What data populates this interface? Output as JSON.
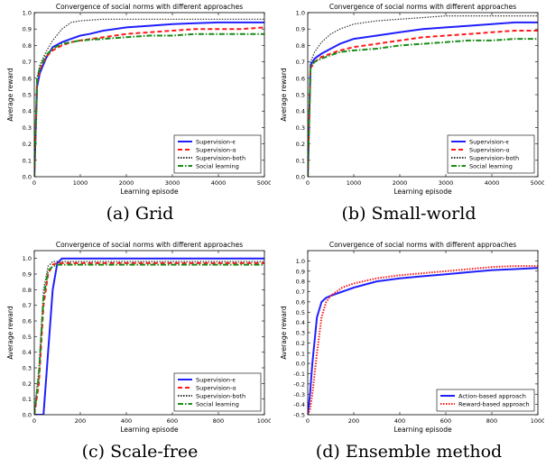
{
  "charts": [
    {
      "caption": "(a) Grid",
      "chart_data": {
        "type": "line",
        "title": "Convergence of social norms with different approaches",
        "xlabel": "Learning episode",
        "ylabel": "Average reward",
        "xlim": [
          0,
          5000
        ],
        "ylim": [
          0.0,
          1.0
        ],
        "xticks": [
          0,
          1000,
          2000,
          3000,
          4000,
          5000
        ],
        "yticks": [
          0.0,
          0.1,
          0.2,
          0.3,
          0.4,
          0.5,
          0.6,
          0.7,
          0.8,
          0.9,
          1.0
        ],
        "ytick_labels": [
          "0.0",
          "0.1",
          "0.2",
          "0.3",
          "0.4",
          "0.5",
          "0.6",
          "0.7",
          "0.8",
          "0.9",
          "1.0"
        ],
        "legend": "bottom-right",
        "series": [
          {
            "name": "Supervision-ϵ",
            "color": "#1f1fff",
            "style": "solid",
            "x": [
              0,
              60,
              120,
              250,
              400,
              600,
              800,
              1000,
              1200,
              1500,
              2000,
              2500,
              3000,
              3500,
              4000,
              4500,
              5000
            ],
            "y": [
              0.0,
              0.55,
              0.63,
              0.72,
              0.79,
              0.82,
              0.84,
              0.86,
              0.87,
              0.89,
              0.91,
              0.92,
              0.93,
              0.935,
              0.94,
              0.94,
              0.94
            ]
          },
          {
            "name": "Supervision-α",
            "color": "#ff1a1a",
            "style": "dashed",
            "x": [
              0,
              60,
              120,
              250,
              400,
              600,
              800,
              1000,
              1500,
              2000,
              2500,
              3000,
              3500,
              4000,
              4500,
              5000
            ],
            "y": [
              0.0,
              0.58,
              0.65,
              0.73,
              0.77,
              0.8,
              0.82,
              0.83,
              0.85,
              0.87,
              0.88,
              0.89,
              0.9,
              0.9,
              0.9,
              0.91
            ]
          },
          {
            "name": "Supervision-both",
            "color": "#333333",
            "style": "dotted",
            "x": [
              0,
              60,
              120,
              250,
              400,
              600,
              800,
              1000,
              1500,
              2000,
              3000,
              4000,
              5000
            ],
            "y": [
              0.0,
              0.6,
              0.68,
              0.76,
              0.83,
              0.9,
              0.94,
              0.95,
              0.96,
              0.96,
              0.96,
              0.96,
              0.96
            ]
          },
          {
            "name": "Social learning",
            "color": "#1a8c1a",
            "style": "dashdot",
            "x": [
              0,
              60,
              120,
              250,
              400,
              600,
              800,
              1000,
              1500,
              2000,
              2500,
              3000,
              3500,
              4000,
              4500,
              5000
            ],
            "y": [
              0.0,
              0.6,
              0.66,
              0.74,
              0.78,
              0.81,
              0.82,
              0.83,
              0.84,
              0.85,
              0.86,
              0.86,
              0.87,
              0.87,
              0.87,
              0.87
            ]
          }
        ]
      }
    },
    {
      "caption": "(b) Small-world",
      "chart_data": {
        "type": "line",
        "title": "Convergence of social norms with different approaches",
        "xlabel": "Learning episode",
        "ylabel": "Average reward",
        "xlim": [
          0,
          5000
        ],
        "ylim": [
          0.0,
          1.0
        ],
        "xticks": [
          0,
          1000,
          2000,
          3000,
          4000,
          5000
        ],
        "yticks": [
          0.0,
          0.1,
          0.2,
          0.3,
          0.4,
          0.5,
          0.6,
          0.7,
          0.8,
          0.9,
          1.0
        ],
        "ytick_labels": [
          "0.0",
          "0.1",
          "0.2",
          "0.3",
          "0.4",
          "0.5",
          "0.6",
          "0.7",
          "0.8",
          "0.9",
          "1.0"
        ],
        "legend": "bottom-right",
        "series": [
          {
            "name": "Supervision-ϵ",
            "color": "#1f1fff",
            "style": "solid",
            "x": [
              0,
              60,
              150,
              300,
              500,
              700,
              1000,
              1500,
              2000,
              2500,
              3000,
              3500,
              4000,
              4500,
              5000
            ],
            "y": [
              0.0,
              0.68,
              0.72,
              0.75,
              0.78,
              0.81,
              0.84,
              0.86,
              0.88,
              0.9,
              0.91,
              0.92,
              0.93,
              0.94,
              0.94
            ]
          },
          {
            "name": "Supervision-α",
            "color": "#ff1a1a",
            "style": "dashed",
            "x": [
              0,
              60,
              150,
              300,
              500,
              700,
              1000,
              1500,
              2000,
              2500,
              3000,
              3500,
              4000,
              4500,
              5000
            ],
            "y": [
              0.0,
              0.66,
              0.7,
              0.73,
              0.75,
              0.77,
              0.79,
              0.81,
              0.83,
              0.85,
              0.86,
              0.87,
              0.88,
              0.89,
              0.89
            ]
          },
          {
            "name": "Supervision-both",
            "color": "#333333",
            "style": "dotted",
            "x": [
              0,
              60,
              150,
              300,
              500,
              700,
              1000,
              1500,
              2000,
              2500,
              3000,
              4000,
              5000
            ],
            "y": [
              0.0,
              0.7,
              0.76,
              0.82,
              0.87,
              0.9,
              0.93,
              0.95,
              0.96,
              0.97,
              0.98,
              0.98,
              0.98
            ]
          },
          {
            "name": "Social learning",
            "color": "#1a8c1a",
            "style": "dashdot",
            "x": [
              0,
              60,
              150,
              300,
              500,
              700,
              1000,
              1500,
              2000,
              2500,
              3000,
              3500,
              4000,
              4500,
              5000
            ],
            "y": [
              0.0,
              0.67,
              0.7,
              0.72,
              0.74,
              0.76,
              0.77,
              0.78,
              0.8,
              0.81,
              0.82,
              0.83,
              0.83,
              0.84,
              0.84
            ]
          }
        ]
      }
    },
    {
      "caption": "(c) Scale-free",
      "chart_data": {
        "type": "line",
        "title": "Convergence of social norms with different approaches",
        "xlabel": "Learning episode",
        "ylabel": "Average reward",
        "xlim": [
          0,
          1000
        ],
        "ylim": [
          0.0,
          1.05
        ],
        "xticks": [
          0,
          200,
          400,
          600,
          800,
          1000
        ],
        "yticks": [
          0.0,
          0.1,
          0.2,
          0.3,
          0.4,
          0.5,
          0.6,
          0.7,
          0.8,
          0.9,
          1.0
        ],
        "ytick_labels": [
          "0.0",
          "0.1",
          "0.2",
          "0.3",
          "0.4",
          "0.5",
          "0.6",
          "0.7",
          "0.8",
          "0.9",
          "1.0"
        ],
        "legend": "bottom-right",
        "series": [
          {
            "name": "Supervision-ϵ",
            "color": "#1f1fff",
            "style": "solid",
            "x": [
              0,
              40,
              60,
              80,
              100,
              120,
              200,
              400,
              600,
              800,
              1000
            ],
            "y": [
              0.0,
              0.0,
              0.4,
              0.8,
              0.97,
              1.0,
              1.0,
              1.0,
              1.0,
              1.0,
              1.0
            ]
          },
          {
            "name": "Supervision-α",
            "color": "#ff1a1a",
            "style": "dashed",
            "x": [
              0,
              20,
              40,
              60,
              80,
              100,
              200,
              400,
              600,
              800,
              1000
            ],
            "y": [
              0.0,
              0.2,
              0.7,
              0.9,
              0.96,
              0.97,
              0.97,
              0.97,
              0.97,
              0.97,
              0.97
            ]
          },
          {
            "name": "Supervision-both",
            "color": "#333333",
            "style": "dotted",
            "x": [
              0,
              20,
              40,
              60,
              80,
              100,
              200,
              400,
              600,
              800,
              1000
            ],
            "y": [
              0.0,
              0.3,
              0.8,
              0.95,
              0.98,
              0.98,
              0.98,
              0.98,
              0.98,
              0.98,
              0.98
            ]
          },
          {
            "name": "Social learning",
            "color": "#1a8c1a",
            "style": "dashdot",
            "x": [
              0,
              20,
              40,
              60,
              80,
              100,
              200,
              400,
              600,
              800,
              1000
            ],
            "y": [
              0.0,
              0.25,
              0.75,
              0.92,
              0.95,
              0.96,
              0.96,
              0.96,
              0.96,
              0.96,
              0.96
            ]
          }
        ]
      }
    },
    {
      "caption": "(d) Ensemble method",
      "chart_data": {
        "type": "line",
        "title": "Convergence of social norms with different approaches",
        "xlabel": "Learning episode",
        "ylabel": "Average reward",
        "xlim": [
          0,
          1000
        ],
        "ylim": [
          -0.5,
          1.1
        ],
        "xticks": [
          0,
          200,
          400,
          600,
          800,
          1000
        ],
        "yticks": [
          -0.5,
          -0.4,
          -0.3,
          -0.2,
          -0.1,
          0.0,
          0.1,
          0.2,
          0.3,
          0.4,
          0.5,
          0.6,
          0.7,
          0.8,
          0.9,
          1.0
        ],
        "ytick_labels": [
          "-0.5",
          "-0.4",
          "-0.3",
          "-0.2",
          "-0.1",
          "0.0",
          "0.1",
          "0.2",
          "0.3",
          "0.4",
          "0.5",
          "0.6",
          "0.7",
          "0.8",
          "0.9",
          "1.0"
        ],
        "legend": "bottom-right",
        "series": [
          {
            "name": "Action-based approach",
            "color": "#1f1fff",
            "style": "solid",
            "x": [
              0,
              10,
              20,
              40,
              60,
              80,
              100,
              150,
              200,
              300,
              400,
              500,
              600,
              700,
              800,
              900,
              1000
            ],
            "y": [
              -0.5,
              -0.3,
              0.0,
              0.45,
              0.6,
              0.64,
              0.66,
              0.7,
              0.74,
              0.8,
              0.83,
              0.85,
              0.87,
              0.89,
              0.91,
              0.92,
              0.93
            ]
          },
          {
            "name": "Reward-based approach",
            "color": "#ff1a1a",
            "style": "dotted",
            "x": [
              0,
              10,
              20,
              40,
              60,
              80,
              100,
              150,
              200,
              300,
              400,
              500,
              600,
              700,
              800,
              900,
              1000
            ],
            "y": [
              -0.5,
              -0.45,
              -0.3,
              0.1,
              0.45,
              0.6,
              0.66,
              0.74,
              0.78,
              0.83,
              0.86,
              0.88,
              0.9,
              0.92,
              0.94,
              0.95,
              0.95
            ]
          }
        ]
      }
    }
  ]
}
